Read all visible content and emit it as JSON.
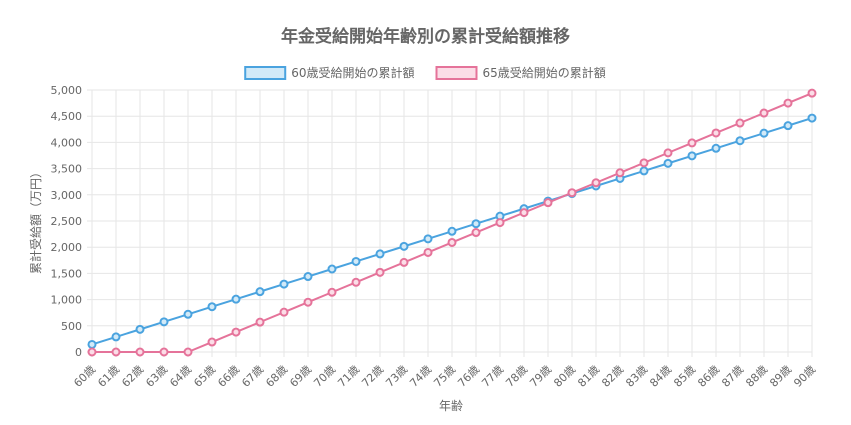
{
  "chart_data": {
    "type": "line",
    "title": "年金受給開始年齢別の累計受給額推移",
    "xlabel": "年齢",
    "ylabel": "累計受給額（万円）",
    "legend_position": "top",
    "grid": true,
    "ylim": [
      0,
      5000
    ],
    "y_ticks": [
      0,
      500,
      1000,
      1500,
      2000,
      2500,
      3000,
      3500,
      4000,
      4500,
      5000
    ],
    "y_tick_labels": [
      "0",
      "500",
      "1,000",
      "1,500",
      "2,000",
      "2,500",
      "3,000",
      "3,500",
      "4,000",
      "4,500",
      "5,000"
    ],
    "categories": [
      "60歳",
      "61歳",
      "62歳",
      "63歳",
      "64歳",
      "65歳",
      "66歳",
      "67歳",
      "68歳",
      "69歳",
      "70歳",
      "71歳",
      "72歳",
      "73歳",
      "74歳",
      "75歳",
      "76歳",
      "77歳",
      "78歳",
      "79歳",
      "80歳",
      "81歳",
      "82歳",
      "83歳",
      "84歳",
      "85歳",
      "86歳",
      "87歳",
      "88歳",
      "89歳",
      "90歳"
    ],
    "series": [
      {
        "name": "60歳受給開始の累計額",
        "color": "#4aa3df",
        "fill": "#d2eaf8",
        "values": [
          144,
          288,
          432,
          576,
          720,
          864,
          1008,
          1152,
          1296,
          1440,
          1584,
          1728,
          1872,
          2016,
          2160,
          2304,
          2448,
          2592,
          2736,
          2880,
          3024,
          3168,
          3312,
          3456,
          3600,
          3744,
          3888,
          4032,
          4176,
          4320,
          4464
        ]
      },
      {
        "name": "65歳受給開始の累計額",
        "color": "#e5739a",
        "fill": "#fbdde7",
        "values": [
          0,
          0,
          0,
          0,
          0,
          190,
          380,
          570,
          760,
          950,
          1140,
          1330,
          1520,
          1710,
          1900,
          2090,
          2280,
          2470,
          2660,
          2850,
          3040,
          3230,
          3420,
          3610,
          3800,
          3990,
          4180,
          4370,
          4560,
          4750,
          4940
        ]
      }
    ]
  }
}
